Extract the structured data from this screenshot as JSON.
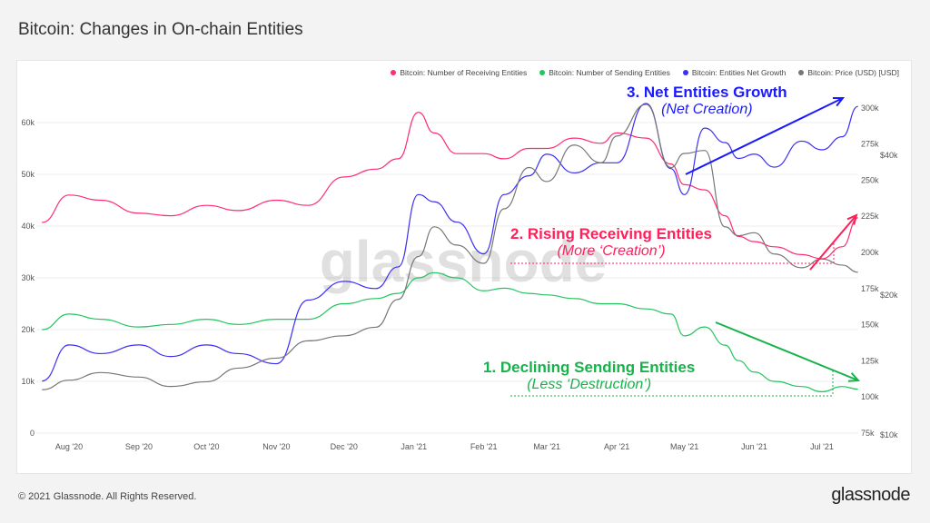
{
  "title": "Bitcoin: Changes in On-chain Entities",
  "footer": "© 2021 Glassnode. All Rights Reserved.",
  "brand": "glassnode",
  "watermark": "glassnode",
  "chart_data": {
    "type": "line",
    "title": "Bitcoin: Changes in On-chain Entities",
    "x": [
      "2020-07-20",
      "2020-08-01",
      "2020-08-15",
      "2020-09-01",
      "2020-09-15",
      "2020-10-01",
      "2020-10-15",
      "2020-11-01",
      "2020-11-15",
      "2020-12-01",
      "2020-12-15",
      "2020-12-25",
      "2021-01-03",
      "2021-01-10",
      "2021-01-20",
      "2021-02-01",
      "2021-02-10",
      "2021-02-21",
      "2021-03-01",
      "2021-03-13",
      "2021-03-25",
      "2021-04-01",
      "2021-04-14",
      "2021-04-25",
      "2021-05-01",
      "2021-05-10",
      "2021-05-19",
      "2021-05-25",
      "2021-06-01",
      "2021-06-10",
      "2021-06-22",
      "2021-07-01",
      "2021-07-10",
      "2021-07-17"
    ],
    "x_ticks": [
      "Aug '20",
      "Sep '20",
      "Oct '20",
      "Nov '20",
      "Dec '20",
      "Jan '21",
      "Feb '21",
      "Mar '21",
      "Apr '21",
      "May '21",
      "Jun '21",
      "Jul '21"
    ],
    "y_left_ticks": [
      "0",
      "10k",
      "20k",
      "30k",
      "40k",
      "50k",
      "60k"
    ],
    "y_left_lim": [
      0,
      65000
    ],
    "y_right_ticks": [
      "75k",
      "100k",
      "125k",
      "150k",
      "175k",
      "200k",
      "225k",
      "250k",
      "275k",
      "300k"
    ],
    "y_right_lim": [
      75000,
      310000
    ],
    "y_price_ticks": [
      "$10k",
      "$20k",
      "$40k"
    ],
    "y_price_scale": "log",
    "grid": true,
    "legend_position": "top-right",
    "series": [
      {
        "name": "Bitcoin: Number of Receiving Entities",
        "axis": "left",
        "color": "#ff2d6f",
        "values": [
          40700,
          46000,
          45000,
          42500,
          42000,
          44000,
          43000,
          45000,
          44000,
          49500,
          51000,
          53000,
          62000,
          58000,
          54000,
          54000,
          53000,
          55000,
          55000,
          57000,
          56000,
          58000,
          57000,
          52000,
          48000,
          47000,
          42000,
          38000,
          37000,
          36000,
          34500,
          33700,
          36000,
          41600
        ]
      },
      {
        "name": "Bitcoin: Number of Sending Entities",
        "axis": "left",
        "color": "#22c55e",
        "values": [
          20000,
          23000,
          22000,
          20500,
          21000,
          22000,
          21000,
          22000,
          22000,
          25000,
          26000,
          27000,
          30000,
          31000,
          30000,
          27500,
          28000,
          27000,
          26700,
          26000,
          25000,
          25000,
          24000,
          23000,
          18800,
          20500,
          17000,
          14000,
          11800,
          10000,
          9000,
          8000,
          9000,
          8500
        ]
      },
      {
        "name": "Bitcoin: Entities Net Growth",
        "axis": "right",
        "color": "#3b2ff5",
        "values": [
          111000,
          136000,
          130000,
          136000,
          128000,
          136000,
          130000,
          123000,
          167000,
          180000,
          175000,
          190000,
          240000,
          235000,
          221000,
          199000,
          240000,
          253000,
          268000,
          255000,
          262000,
          262000,
          303000,
          258000,
          240000,
          286000,
          276000,
          265000,
          268000,
          259000,
          277000,
          271000,
          280000,
          301000
        ]
      },
      {
        "name": "Bitcoin: Price (USD) [USD]",
        "axis": "price",
        "color": "#777777",
        "values": [
          12400,
          13000,
          13500,
          13200,
          12600,
          12900,
          13800,
          14500,
          15800,
          16200,
          16900,
          19400,
          24000,
          27800,
          25400,
          23200,
          30400,
          37300,
          34800,
          41700,
          38200,
          43600,
          51000,
          37300,
          40000,
          40600,
          27800,
          26600,
          27000,
          24300,
          22700,
          23700,
          23000,
          22200
        ]
      }
    ],
    "annotations": [
      {
        "title": "3. Net Entities Growth",
        "subtitle": "(Net Creation)",
        "color": "#1a1aff"
      },
      {
        "title": "2. Rising Receiving Entities",
        "subtitle": "(More ‘Creation’)",
        "color": "#ff1f5a"
      },
      {
        "title": "1. Declining Sending Entities",
        "subtitle": "(Less ‘Destruction’)",
        "color": "#16b34a"
      }
    ]
  }
}
